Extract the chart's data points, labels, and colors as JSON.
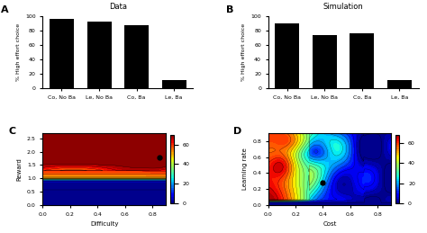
{
  "panel_A_title": "Data",
  "panel_B_title": "Simulation",
  "bar_categories": [
    "Co, No Ba",
    "Le, No Ba",
    "Co, Ba",
    "Le, Ba"
  ],
  "bar_values_A": [
    97,
    93,
    88,
    12
  ],
  "bar_values_B": [
    90,
    74,
    76,
    11
  ],
  "bar_color": "#000000",
  "ylabel_bar": "% High effort choice",
  "ylim_bar": [
    0,
    100
  ],
  "yticks_bar": [
    0,
    20,
    40,
    60,
    80,
    100
  ],
  "xlabel_C": "Difficulty",
  "ylabel_C": "Reward",
  "xlabel_D": "Cost",
  "ylabel_D": "Learning rate",
  "dot_C": [
    0.85,
    1.8
  ],
  "dot_D": [
    0.4,
    0.28
  ],
  "colorbar_ticks": [
    0,
    20,
    40,
    60
  ],
  "background_color": "#ffffff"
}
